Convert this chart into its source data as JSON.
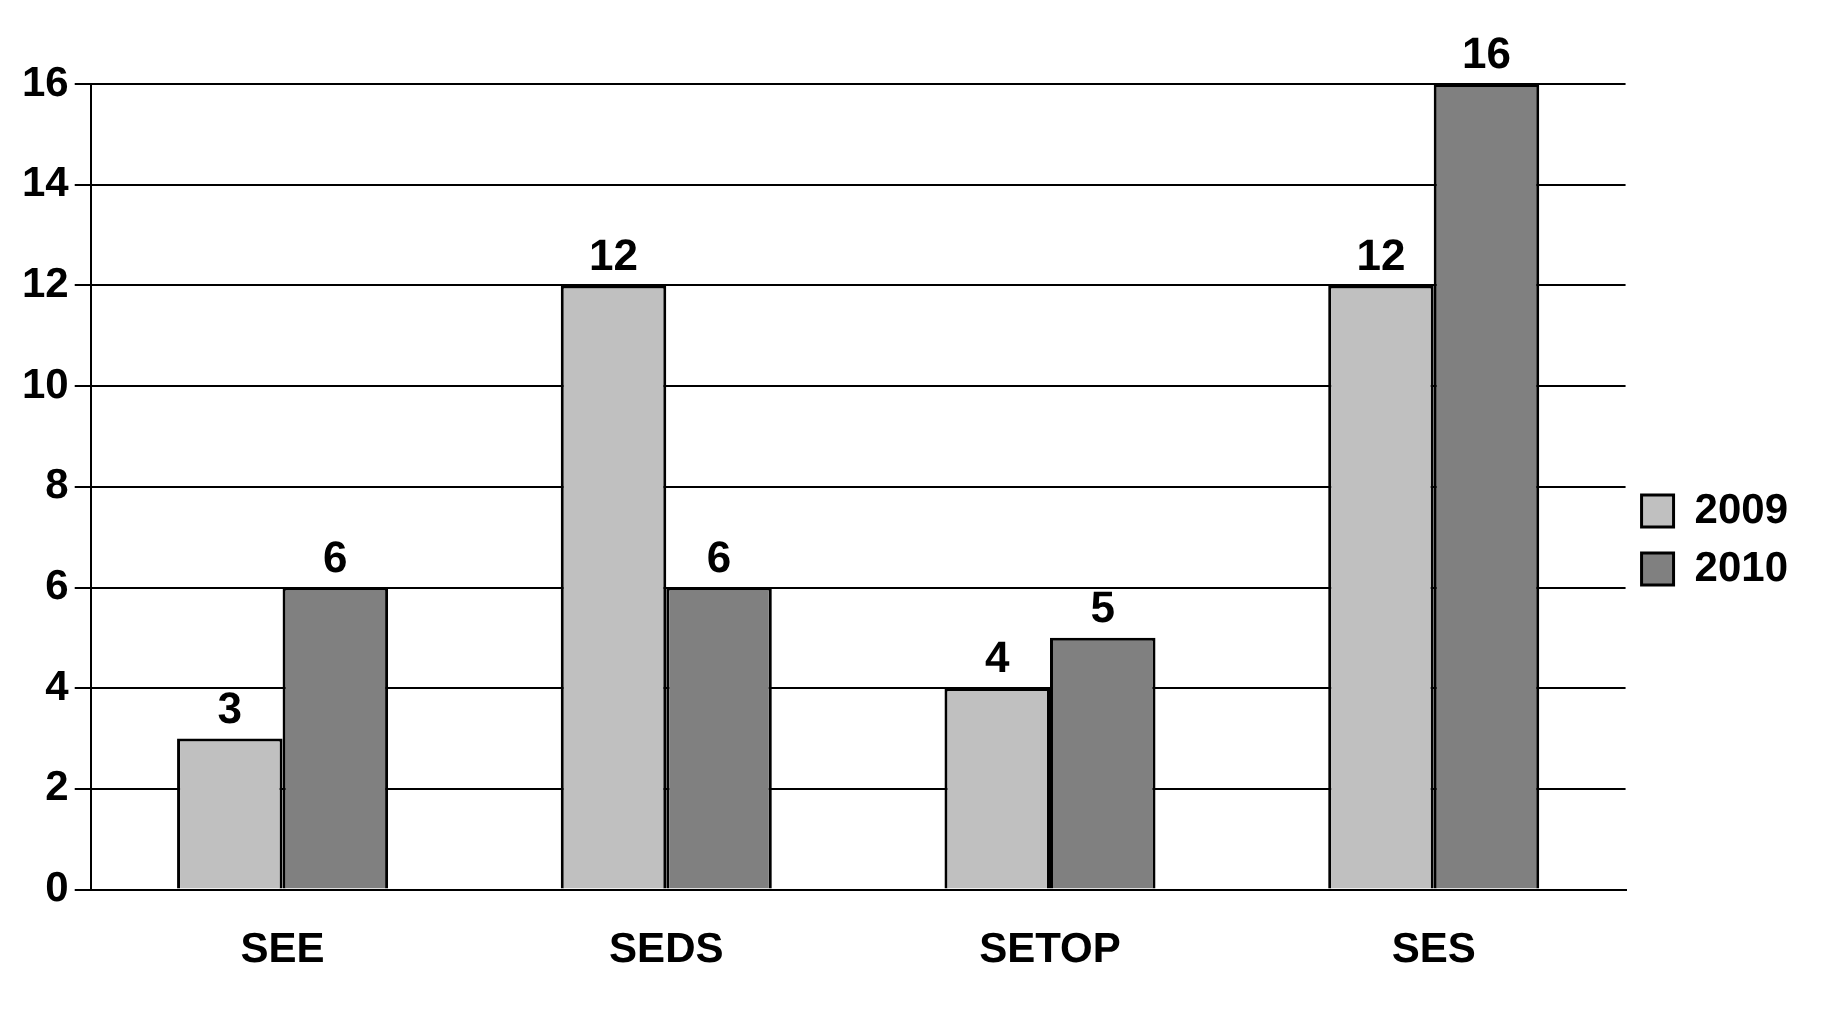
{
  "chart_data": {
    "type": "bar",
    "categories": [
      "SEE",
      "SEDS",
      "SETOP",
      "SES"
    ],
    "series": [
      {
        "name": "2009",
        "color": "#c0c0c0",
        "values": [
          3,
          12,
          4,
          12
        ]
      },
      {
        "name": "2010",
        "color": "#808080",
        "values": [
          6,
          6,
          5,
          16
        ]
      }
    ],
    "ylim": [
      0,
      16
    ],
    "yticks": [
      0,
      2,
      4,
      6,
      8,
      10,
      12,
      14,
      16
    ],
    "grid": "y",
    "legend": "right",
    "data_labels": true
  }
}
